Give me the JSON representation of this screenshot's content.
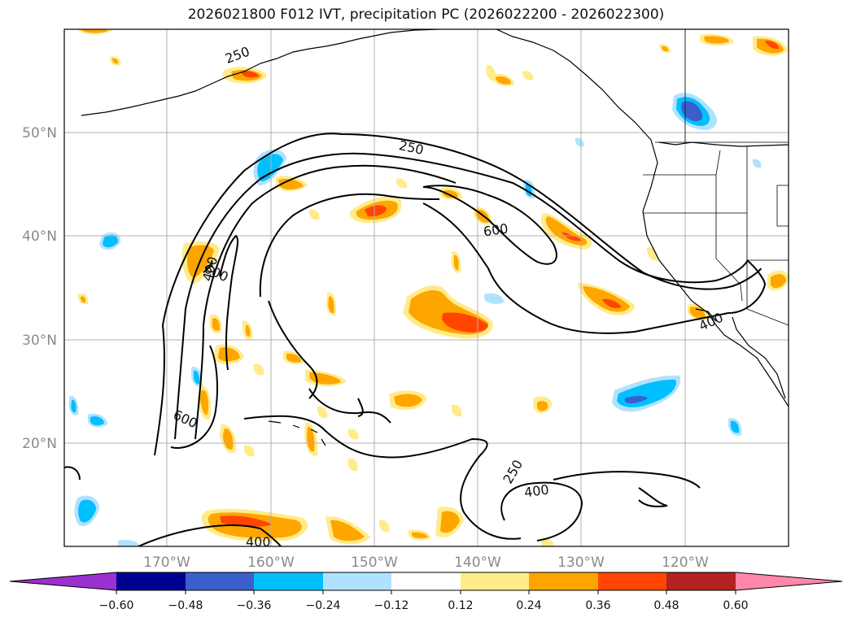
{
  "title": "2026021800 F012 IVT, precipitation PC (2026022200 - 2026022300)",
  "latitude_labels": [
    "50°N",
    "40°N",
    "30°N",
    "20°N"
  ],
  "longitude_labels": [
    "170°W",
    "160°W",
    "150°W",
    "140°W",
    "130°W",
    "120°W"
  ],
  "contour_labels": [
    "250",
    "250",
    "600",
    "600",
    "400",
    "400",
    "600",
    "250",
    "400",
    "400"
  ],
  "colorbar": {
    "ticks": [
      "−0.60",
      "−0.48",
      "−0.36",
      "−0.24",
      "−0.12",
      "0.12",
      "0.24",
      "0.36",
      "0.48",
      "0.60"
    ],
    "colors": [
      "#9b30d0",
      "#000090",
      "#3a5fcd",
      "#00bfff",
      "#b0e2ff",
      "#ffffff",
      "#ffeb8a",
      "#ffa500",
      "#ff4500",
      "#b22222",
      "#ff88aa"
    ]
  }
}
